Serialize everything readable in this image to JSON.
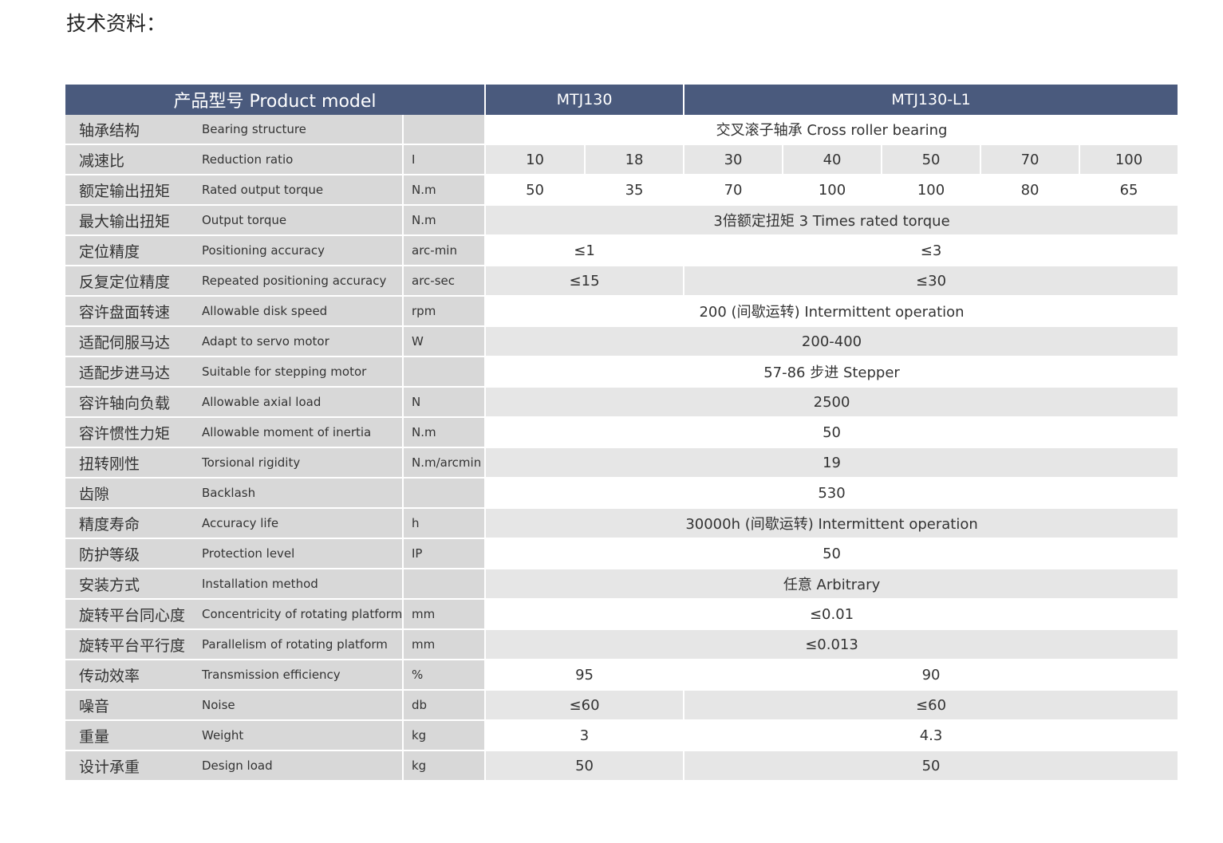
{
  "title": "技术资料：",
  "header": {
    "product_model": "产品型号 Product model",
    "model_a": "MTJ130",
    "model_b": "MTJ130-L1"
  },
  "rows": [
    {
      "cn": "轴承结构",
      "en": "Bearing structure",
      "unit": "",
      "cells": [
        {
          "v": "交叉滚子轴承 Cross roller bearing",
          "span": 7
        }
      ]
    },
    {
      "cn": "减速比",
      "en": "Reduction ratio",
      "unit": "I",
      "cells": [
        {
          "v": "10",
          "span": 1
        },
        {
          "v": "18",
          "span": 1
        },
        {
          "v": "30",
          "span": 1
        },
        {
          "v": "40",
          "span": 1
        },
        {
          "v": "50",
          "span": 1
        },
        {
          "v": "70",
          "span": 1
        },
        {
          "v": "100",
          "span": 1
        }
      ]
    },
    {
      "cn": "额定输出扭矩",
      "en": "Rated output torque",
      "unit": "N.m",
      "cells": [
        {
          "v": "50",
          "span": 1
        },
        {
          "v": "35",
          "span": 1
        },
        {
          "v": "70",
          "span": 1
        },
        {
          "v": "100",
          "span": 1
        },
        {
          "v": "100",
          "span": 1
        },
        {
          "v": "80",
          "span": 1
        },
        {
          "v": "65",
          "span": 1
        }
      ]
    },
    {
      "cn": "最大输出扭矩",
      "en": "Output torque",
      "unit": "N.m",
      "cells": [
        {
          "v": "3倍额定扭矩 3 Times rated torque",
          "span": 7
        }
      ]
    },
    {
      "cn": "定位精度",
      "en": "Positioning accuracy",
      "unit": "arc-min",
      "cells": [
        {
          "v": "≤1",
          "span": 2
        },
        {
          "v": "≤3",
          "span": 5
        }
      ]
    },
    {
      "cn": "反复定位精度",
      "en": "Repeated positioning accuracy",
      "unit": "arc-sec",
      "cells": [
        {
          "v": "≤15",
          "span": 2
        },
        {
          "v": "≤30",
          "span": 5
        }
      ]
    },
    {
      "cn": "容许盘面转速",
      "en": "Allowable disk speed",
      "unit": "rpm",
      "cells": [
        {
          "v": "200 (间歇运转) Intermittent operation",
          "span": 7
        }
      ]
    },
    {
      "cn": "适配伺服马达",
      "en": "Adapt to servo motor",
      "unit": "W",
      "cells": [
        {
          "v": "200-400",
          "span": 7
        }
      ]
    },
    {
      "cn": "适配步进马达",
      "en": "Suitable for stepping motor",
      "unit": "",
      "cells": [
        {
          "v": "57-86 步进 Stepper",
          "span": 7
        }
      ]
    },
    {
      "cn": "容许轴向负载",
      "en": "Allowable axial load",
      "unit": "N",
      "cells": [
        {
          "v": "2500",
          "span": 7
        }
      ]
    },
    {
      "cn": "容许惯性力矩",
      "en": "Allowable moment of inertia",
      "unit": "N.m",
      "cells": [
        {
          "v": "50",
          "span": 7
        }
      ]
    },
    {
      "cn": "扭转刚性",
      "en": "Torsional rigidity",
      "unit": "N.m/arcmin",
      "cells": [
        {
          "v": "19",
          "span": 7
        }
      ]
    },
    {
      "cn": "齿隙",
      "en": "Backlash",
      "unit": "",
      "cells": [
        {
          "v": "530",
          "span": 7
        }
      ]
    },
    {
      "cn": "精度寿命",
      "en": "Accuracy life",
      "unit": "h",
      "cells": [
        {
          "v": "30000h (间歇运转) Intermittent operation",
          "span": 7
        }
      ]
    },
    {
      "cn": "防护等级",
      "en": "Protection level",
      "unit": "IP",
      "cells": [
        {
          "v": "50",
          "span": 7
        }
      ]
    },
    {
      "cn": "安装方式",
      "en": "Installation method",
      "unit": "",
      "cells": [
        {
          "v": "任意 Arbitrary",
          "span": 7
        }
      ]
    },
    {
      "cn": "旋转平台同心度",
      "en": "Concentricity of rotating platform",
      "unit": "mm",
      "cells": [
        {
          "v": "≤0.01",
          "span": 7
        }
      ]
    },
    {
      "cn": "旋转平台平行度",
      "en": "Parallelism of rotating platform",
      "unit": "mm",
      "cells": [
        {
          "v": "≤0.013",
          "span": 7
        }
      ]
    },
    {
      "cn": "传动效率",
      "en": "Transmission efficiency",
      "unit": "%",
      "cells": [
        {
          "v": "95",
          "span": 2
        },
        {
          "v": "90",
          "span": 5
        }
      ]
    },
    {
      "cn": "噪音",
      "en": "Noise",
      "unit": "db",
      "cells": [
        {
          "v": "≤60",
          "span": 2
        },
        {
          "v": "≤60",
          "span": 5
        }
      ]
    },
    {
      "cn": "重量",
      "en": "Weight",
      "unit": "kg",
      "cells": [
        {
          "v": "3",
          "span": 2
        },
        {
          "v": "4.3",
          "span": 5
        }
      ]
    },
    {
      "cn": "设计承重",
      "en": "Design load",
      "unit": "kg",
      "cells": [
        {
          "v": "50",
          "span": 2
        },
        {
          "v": "50",
          "span": 5
        }
      ]
    }
  ]
}
